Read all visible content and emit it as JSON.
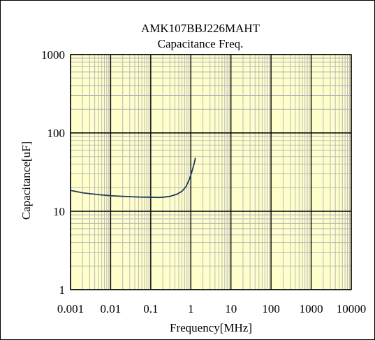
{
  "chart_data": {
    "type": "line",
    "title": "AMK107BBJ226MAHT",
    "subtitle": "Capacitance Freq.",
    "xlabel": "Frequency[MHz]",
    "ylabel": "Capacitance[uF]",
    "x_scale": "log",
    "y_scale": "log",
    "xlim": [
      0.001,
      10000
    ],
    "ylim": [
      1,
      1000
    ],
    "x_ticks": [
      0.001,
      0.01,
      0.1,
      1,
      10,
      100,
      1000,
      10000
    ],
    "x_tick_labels": [
      "0.001",
      "0.01",
      "0.1",
      "1",
      "10",
      "100",
      "1000",
      "10000"
    ],
    "y_ticks": [
      1,
      10,
      100,
      1000
    ],
    "y_tick_labels": [
      "1",
      "10",
      "100",
      "1000"
    ],
    "grid": true,
    "plot_background": "#ffffcc",
    "series": [
      {
        "color": "#1f3b5a",
        "x": [
          0.001,
          0.002,
          0.005,
          0.01,
          0.02,
          0.05,
          0.1,
          0.15,
          0.2,
          0.3,
          0.45,
          0.6,
          0.75,
          0.9,
          1.0,
          1.1,
          1.2,
          1.3
        ],
        "y": [
          18.5,
          17.2,
          16.3,
          15.8,
          15.5,
          15.2,
          15.1,
          15.0,
          15.1,
          15.5,
          16.5,
          18.0,
          20.5,
          25.0,
          29.0,
          34.0,
          40.0,
          48.0
        ]
      }
    ]
  }
}
